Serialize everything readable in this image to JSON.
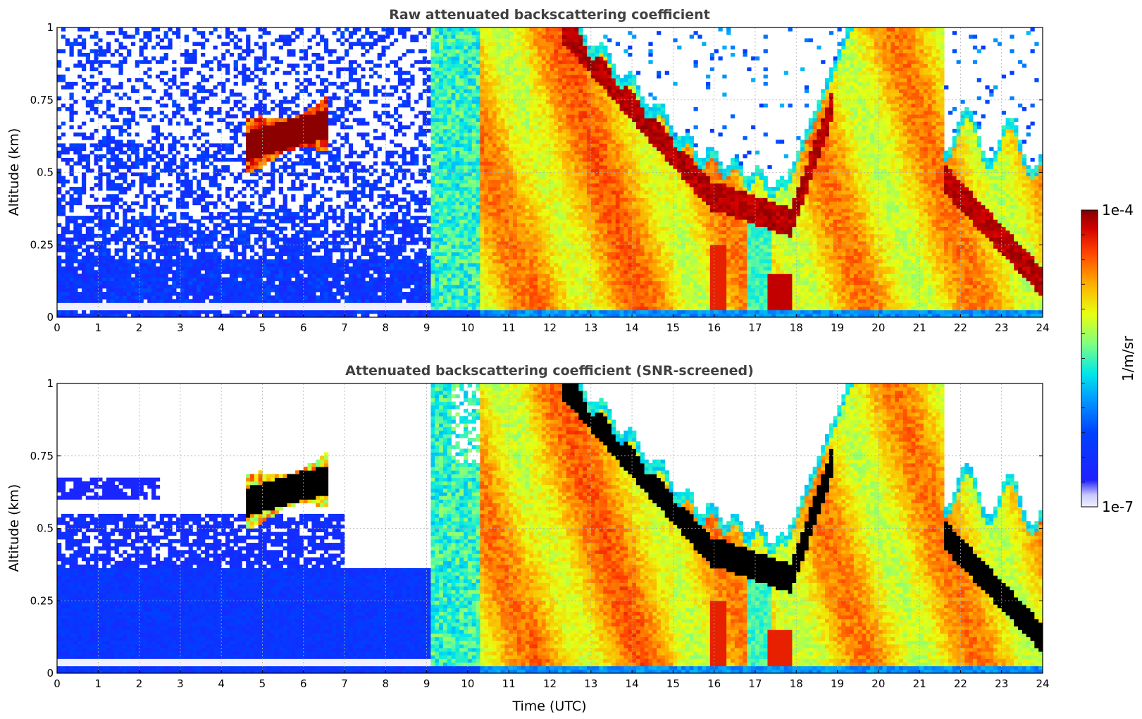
{
  "chart_data": [
    {
      "type": "heatmap",
      "title": "Raw attenuated backscattering coefficient",
      "xlabel": "",
      "ylabel": "Altitude (km)",
      "xlim": [
        0,
        24
      ],
      "ylim": [
        0,
        1
      ],
      "xticks": [
        "0",
        "1",
        "2",
        "3",
        "4",
        "5",
        "6",
        "7",
        "8",
        "9",
        "10",
        "11",
        "12",
        "13",
        "14",
        "15",
        "16",
        "17",
        "18",
        "19",
        "20",
        "21",
        "22",
        "23",
        "24"
      ],
      "yticks": [
        "0",
        "0.25",
        "0.5",
        "0.75",
        "1"
      ],
      "grid": true,
      "scale": "log",
      "clim": [
        1e-07,
        0.0001
      ],
      "regions": [
        {
          "feature": "noisy background",
          "x": [
            0,
            9.1
          ],
          "y": [
            0,
            1
          ],
          "level": "low"
        },
        {
          "feature": "elevated cloud layer",
          "x": [
            4.6,
            6.6
          ],
          "y": [
            0.53,
            0.74
          ],
          "level": "max"
        },
        {
          "feature": "boundary layer aerosol",
          "x": [
            9.1,
            24
          ],
          "y": [
            0,
            1
          ],
          "level": "high"
        },
        {
          "feature": "no signal region",
          "x": [
            15.5,
            19.5
          ],
          "y": [
            0.7,
            1
          ],
          "level": "none"
        }
      ]
    },
    {
      "type": "heatmap",
      "title": "Attenuated backscattering coefficient (SNR-screened)",
      "xlabel": "Time (UTC)",
      "ylabel": "Altitude (km)",
      "xlim": [
        0,
        24
      ],
      "ylim": [
        0,
        1
      ],
      "xticks": [
        "0",
        "1",
        "2",
        "3",
        "4",
        "5",
        "6",
        "7",
        "8",
        "9",
        "10",
        "11",
        "12",
        "13",
        "14",
        "15",
        "16",
        "17",
        "18",
        "19",
        "20",
        "21",
        "22",
        "23",
        "24"
      ],
      "yticks": [
        "0",
        "0.25",
        "0.5",
        "0.75",
        "1"
      ],
      "grid": true,
      "scale": "log",
      "clim": [
        1e-07,
        0.0001
      ],
      "colorbar": {
        "label": "1/m/sr",
        "max_label": "1e-4",
        "min_label": "1e-7",
        "colormap": "jet"
      }
    }
  ]
}
